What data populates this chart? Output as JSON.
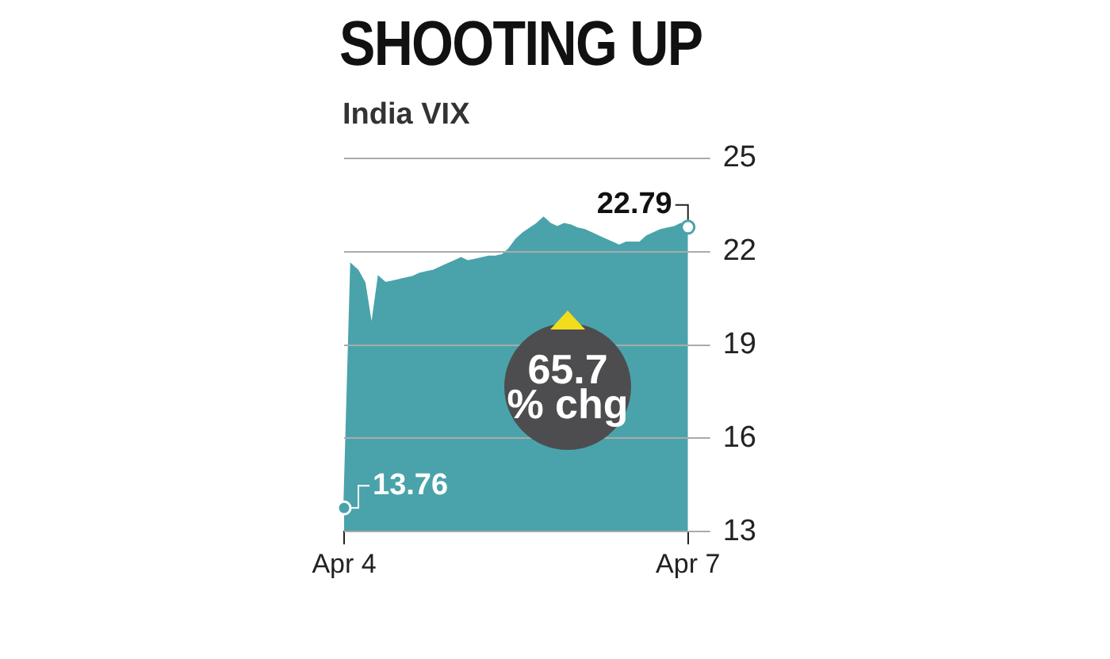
{
  "chart_data": {
    "type": "area",
    "title": "SHOOTING UP",
    "subtitle": "India VIX",
    "categories": [
      "Apr 4",
      null,
      null,
      null,
      null,
      null,
      null,
      null,
      null,
      null,
      null,
      null,
      null,
      null,
      null,
      null,
      null,
      null,
      null,
      null,
      null,
      null,
      null,
      null,
      null,
      null,
      null,
      null,
      null,
      null,
      null,
      null,
      null,
      null,
      null,
      null,
      null,
      null,
      null,
      null,
      null,
      null,
      null,
      null,
      null,
      null,
      null,
      null,
      null,
      null,
      "Apr 7"
    ],
    "series": [
      {
        "color": "#4aa3ab",
        "values": [
          13.76,
          21.6,
          21.4,
          21.0,
          19.6,
          21.2,
          21.0,
          21.05,
          21.1,
          21.15,
          21.2,
          21.3,
          21.35,
          21.4,
          21.5,
          21.6,
          21.7,
          21.8,
          21.7,
          21.75,
          21.8,
          21.85,
          21.85,
          21.9,
          22.1,
          22.4,
          22.6,
          22.75,
          22.9,
          23.1,
          22.9,
          22.8,
          22.9,
          22.85,
          22.75,
          22.7,
          22.6,
          22.5,
          22.4,
          22.3,
          22.2,
          22.3,
          22.3,
          22.3,
          22.5,
          22.6,
          22.7,
          22.75,
          22.8,
          22.9,
          22.79
        ]
      }
    ],
    "ylim": [
      13,
      25
    ],
    "yticks": [
      13,
      16,
      19,
      22,
      25
    ],
    "grid": "y",
    "legend": false,
    "annotations": [
      {
        "text": "13.76",
        "x": "Apr 4",
        "y": 13.76
      },
      {
        "text": "22.79",
        "x": "Apr 7",
        "y": 22.79
      },
      "65.7\n% chg"
    ]
  }
}
